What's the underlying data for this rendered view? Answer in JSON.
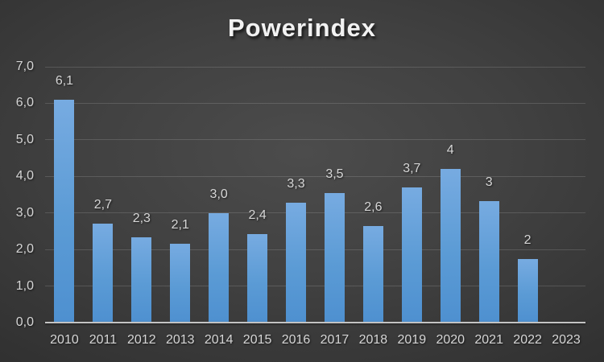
{
  "title": "Powerindex",
  "chart_data": {
    "type": "bar",
    "title": "Powerindex",
    "categories": [
      "2010",
      "2011",
      "2012",
      "2013",
      "2014",
      "2015",
      "2016",
      "2017",
      "2018",
      "2019",
      "2020",
      "2021",
      "2022",
      "2023"
    ],
    "values": [
      6.1,
      2.7,
      2.33,
      2.15,
      3.0,
      2.43,
      3.28,
      3.55,
      2.65,
      3.7,
      4.2,
      3.32,
      1.73,
      null
    ],
    "bar_labels": [
      "6,1",
      "2,7",
      "2,3",
      "2,1",
      "3,0",
      "2,4",
      "3,3",
      "3,5",
      "2,6",
      "3,7",
      "4",
      "3",
      "2",
      ""
    ],
    "xlabel": "",
    "ylabel": "",
    "ylim": [
      0,
      7
    ],
    "ytick_labels": [
      "0,0",
      "1,0",
      "2,0",
      "3,0",
      "4,0",
      "5,0",
      "6,0",
      "7,0"
    ],
    "grid": true,
    "legend": false,
    "colors": {
      "bar": "#5b9bd5",
      "bar_gradient_top": "#77abe1",
      "bar_gradient_bottom": "#4e90d0",
      "text": "#d6d6d6",
      "title_text": "#f2f2f2",
      "gridline": "rgba(255,255,255,0.14)",
      "axis_line": "#c3c3c3",
      "background_center": "#4b4b4b",
      "background_edge": "#232323"
    }
  }
}
